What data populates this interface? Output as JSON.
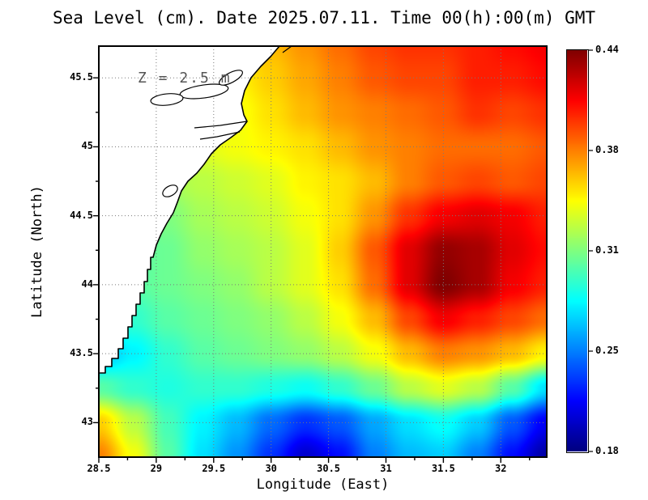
{
  "chart_data": {
    "type": "heatmap",
    "title": "Sea Level (cm). Date 2025.07.11. Time 00(h):00(m) GMT",
    "annotation": "Z = 2.5 m",
    "x_axis": {
      "label": "Longitude (East)",
      "ticks": [
        28.5,
        29,
        29.5,
        30,
        30.5,
        31,
        31.5,
        32
      ],
      "tick_labels": [
        "28.5",
        "29",
        "29.5",
        "30",
        "30.5",
        "31",
        "31.5",
        "32"
      ]
    },
    "y_axis": {
      "label": "Latitude (North)",
      "ticks": [
        43,
        43.5,
        44,
        44.5,
        45,
        45.5
      ],
      "tick_labels": [
        "43",
        "43.5",
        "44",
        "44.5",
        "45",
        "45.5"
      ]
    },
    "x_range": [
      28.5,
      32.4
    ],
    "y_range": [
      42.75,
      45.73
    ],
    "z_range": [
      0.18,
      0.44
    ],
    "colormap": "jet",
    "colorbar": {
      "labels": [
        "0.44",
        "0.38",
        "0.31",
        "0.25",
        "0.18"
      ],
      "min": 0.18,
      "max": 0.44
    },
    "grid": {
      "lons": [
        28.5,
        28.8,
        29.1,
        29.4,
        29.7,
        30.0,
        30.3,
        30.6,
        30.9,
        31.2,
        31.5,
        31.8,
        32.1,
        32.4
      ],
      "lats": [
        45.75,
        45.5,
        45.25,
        45.0,
        44.75,
        44.5,
        44.25,
        44.0,
        43.75,
        43.5,
        43.25,
        43.0,
        42.75
      ],
      "values": [
        [
          0.34,
          0.34,
          0.345,
          0.35,
          0.355,
          0.36,
          0.37,
          0.38,
          0.39,
          0.395,
          0.395,
          0.4,
          0.405,
          0.41
        ],
        [
          0.335,
          0.335,
          0.34,
          0.34,
          0.345,
          0.355,
          0.365,
          0.375,
          0.385,
          0.39,
          0.39,
          0.4,
          0.4,
          0.405
        ],
        [
          0.33,
          0.33,
          0.335,
          0.335,
          0.34,
          0.35,
          0.36,
          0.37,
          0.375,
          0.38,
          0.385,
          0.395,
          0.39,
          0.395
        ],
        [
          0.325,
          0.325,
          0.33,
          0.335,
          0.34,
          0.345,
          0.35,
          0.36,
          0.37,
          0.375,
          0.38,
          0.38,
          0.38,
          0.385
        ],
        [
          0.315,
          0.315,
          0.32,
          0.325,
          0.33,
          0.335,
          0.345,
          0.35,
          0.36,
          0.375,
          0.385,
          0.39,
          0.385,
          0.39
        ],
        [
          0.305,
          0.305,
          0.31,
          0.32,
          0.325,
          0.33,
          0.34,
          0.35,
          0.37,
          0.395,
          0.41,
          0.415,
          0.41,
          0.4
        ],
        [
          0.3,
          0.3,
          0.305,
          0.315,
          0.32,
          0.325,
          0.335,
          0.355,
          0.385,
          0.415,
          0.435,
          0.43,
          0.415,
          0.405
        ],
        [
          0.295,
          0.3,
          0.305,
          0.31,
          0.315,
          0.325,
          0.335,
          0.35,
          0.38,
          0.415,
          0.44,
          0.43,
          0.41,
          0.4
        ],
        [
          0.275,
          0.29,
          0.3,
          0.305,
          0.31,
          0.315,
          0.325,
          0.34,
          0.36,
          0.39,
          0.41,
          0.4,
          0.39,
          0.38
        ],
        [
          0.26,
          0.275,
          0.29,
          0.3,
          0.305,
          0.31,
          0.315,
          0.325,
          0.34,
          0.36,
          0.375,
          0.37,
          0.36,
          0.345
        ],
        [
          0.3,
          0.29,
          0.285,
          0.29,
          0.29,
          0.285,
          0.28,
          0.29,
          0.305,
          0.325,
          0.335,
          0.325,
          0.3,
          0.27
        ],
        [
          0.355,
          0.325,
          0.295,
          0.275,
          0.26,
          0.24,
          0.225,
          0.235,
          0.255,
          0.27,
          0.28,
          0.265,
          0.235,
          0.21
        ],
        [
          0.375,
          0.34,
          0.3,
          0.27,
          0.25,
          0.225,
          0.2,
          0.215,
          0.245,
          0.26,
          0.265,
          0.245,
          0.215,
          0.19
        ]
      ]
    }
  }
}
